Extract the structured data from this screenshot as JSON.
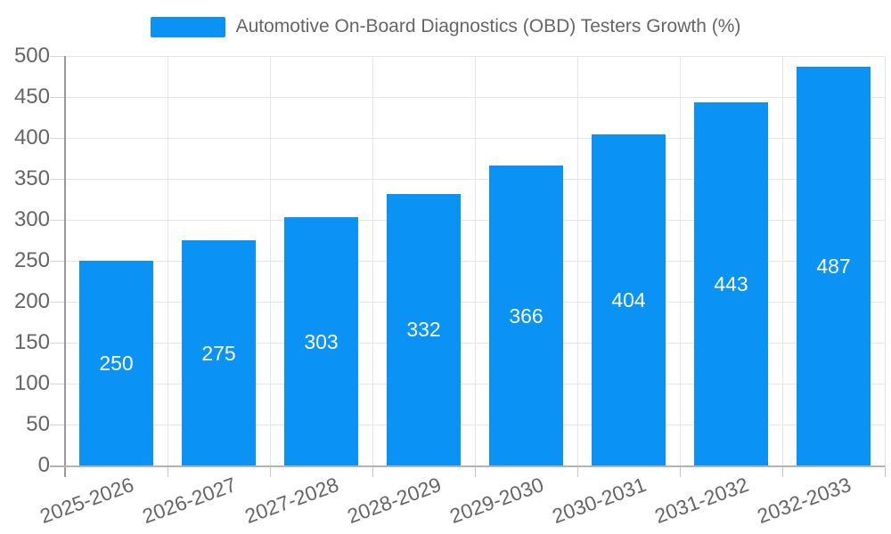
{
  "legend": {
    "label": "Automotive On-Board Diagnostics (OBD) Testers Growth (%)",
    "swatch_color": "#0a93f5"
  },
  "chart_data": {
    "type": "bar",
    "title": "Automotive On-Board Diagnostics (OBD) Testers Growth (%)",
    "categories": [
      "2025-2026",
      "2026-2027",
      "2027-2028",
      "2028-2029",
      "2029-2030",
      "2030-2031",
      "2031-2032",
      "2032-2033"
    ],
    "values": [
      250,
      275,
      303,
      332,
      366,
      404,
      443,
      487
    ],
    "xlabel": "",
    "ylabel": "",
    "ylim": [
      0,
      500
    ],
    "ytick_step": 50,
    "yticks": [
      0,
      50,
      100,
      150,
      200,
      250,
      300,
      350,
      400,
      450,
      500
    ],
    "grid": true,
    "legend_position": "top",
    "bar_color": "#0a93f5",
    "value_label_color": "#ffffff",
    "axis_label_color": "#666666",
    "gridline_color": "#e6e6e6"
  }
}
